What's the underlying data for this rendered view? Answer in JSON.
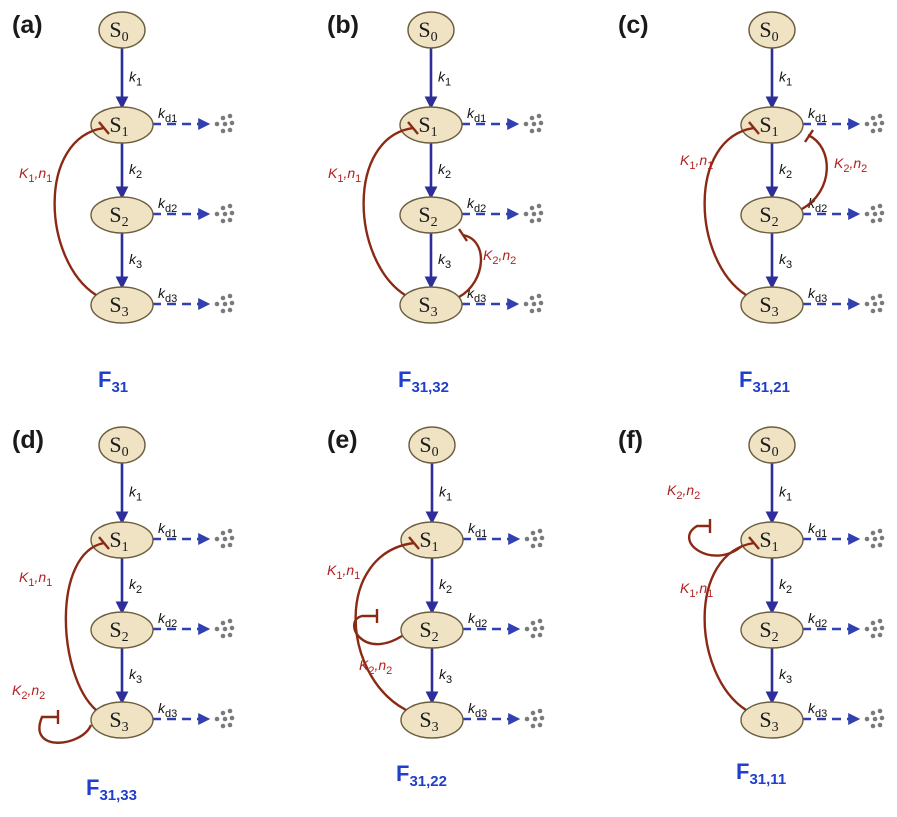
{
  "panels": [
    {
      "letter": "(a)",
      "caption_main": "F",
      "caption_sub": "31",
      "feedbacks": [
        {
          "from": "S3",
          "to": "S1",
          "label_K": "K",
          "label_K_sub": "1",
          "label_n": "n",
          "label_n_sub": "1"
        }
      ]
    },
    {
      "letter": "(b)",
      "caption_main": "F",
      "caption_sub": "31,32",
      "feedbacks": [
        {
          "from": "S3",
          "to": "S1",
          "label_K": "K",
          "label_K_sub": "1",
          "label_n": "n",
          "label_n_sub": "1"
        },
        {
          "from": "S3",
          "to": "S2",
          "label_K": "K",
          "label_K_sub": "2",
          "label_n": "n",
          "label_n_sub": "2"
        }
      ]
    },
    {
      "letter": "(c)",
      "caption_main": "F",
      "caption_sub": "31,21",
      "feedbacks": [
        {
          "from": "S3",
          "to": "S1",
          "label_K": "K",
          "label_K_sub": "1",
          "label_n": "n",
          "label_n_sub": "1"
        },
        {
          "from": "S2",
          "to": "S1",
          "label_K": "K",
          "label_K_sub": "2",
          "label_n": "n",
          "label_n_sub": "2"
        }
      ]
    },
    {
      "letter": "(d)",
      "caption_main": "F",
      "caption_sub": "31,33",
      "feedbacks": [
        {
          "from": "S3",
          "to": "S1",
          "label_K": "K",
          "label_K_sub": "1",
          "label_n": "n",
          "label_n_sub": "1"
        },
        {
          "from": "S3",
          "to": "S3",
          "label_K": "K",
          "label_K_sub": "2",
          "label_n": "n",
          "label_n_sub": "2"
        }
      ]
    },
    {
      "letter": "(e)",
      "caption_main": "F",
      "caption_sub": "31,22",
      "feedbacks": [
        {
          "from": "S3",
          "to": "S1",
          "label_K": "K",
          "label_K_sub": "1",
          "label_n": "n",
          "label_n_sub": "1"
        },
        {
          "from": "S2",
          "to": "S2",
          "label_K": "K",
          "label_K_sub": "2",
          "label_n": "n",
          "label_n_sub": "2"
        }
      ]
    },
    {
      "letter": "(f)",
      "caption_main": "F",
      "caption_sub": "31,11",
      "feedbacks": [
        {
          "from": "S3",
          "to": "S1",
          "label_K": "K",
          "label_K_sub": "1",
          "label_n": "n",
          "label_n_sub": "1"
        },
        {
          "from": "S1",
          "to": "S1",
          "label_K": "K",
          "label_K_sub": "2",
          "label_n": "n",
          "label_n_sub": "2"
        }
      ]
    }
  ],
  "states": [
    {
      "main": "S",
      "sub": "0"
    },
    {
      "main": "S",
      "sub": "1"
    },
    {
      "main": "S",
      "sub": "2"
    },
    {
      "main": "S",
      "sub": "3"
    }
  ],
  "production_rates": [
    {
      "main": "k",
      "sub": "1"
    },
    {
      "main": "k",
      "sub": "2"
    },
    {
      "main": "k",
      "sub": "3"
    }
  ],
  "degradation_rates": [
    {
      "main": "k",
      "sub": "d1"
    },
    {
      "main": "k",
      "sub": "d2"
    },
    {
      "main": "k",
      "sub": "d3"
    }
  ],
  "colors": {
    "node_fill": "#efe3c4",
    "node_stroke": "#6b5d3e",
    "forward_arrow": "#2e2e9a",
    "degradation_arrow": "#3040b0",
    "feedback": "#8b2a14",
    "feedback_label": "#b22222",
    "caption": "#1f3fcc",
    "dots": "#7a7a7a"
  }
}
